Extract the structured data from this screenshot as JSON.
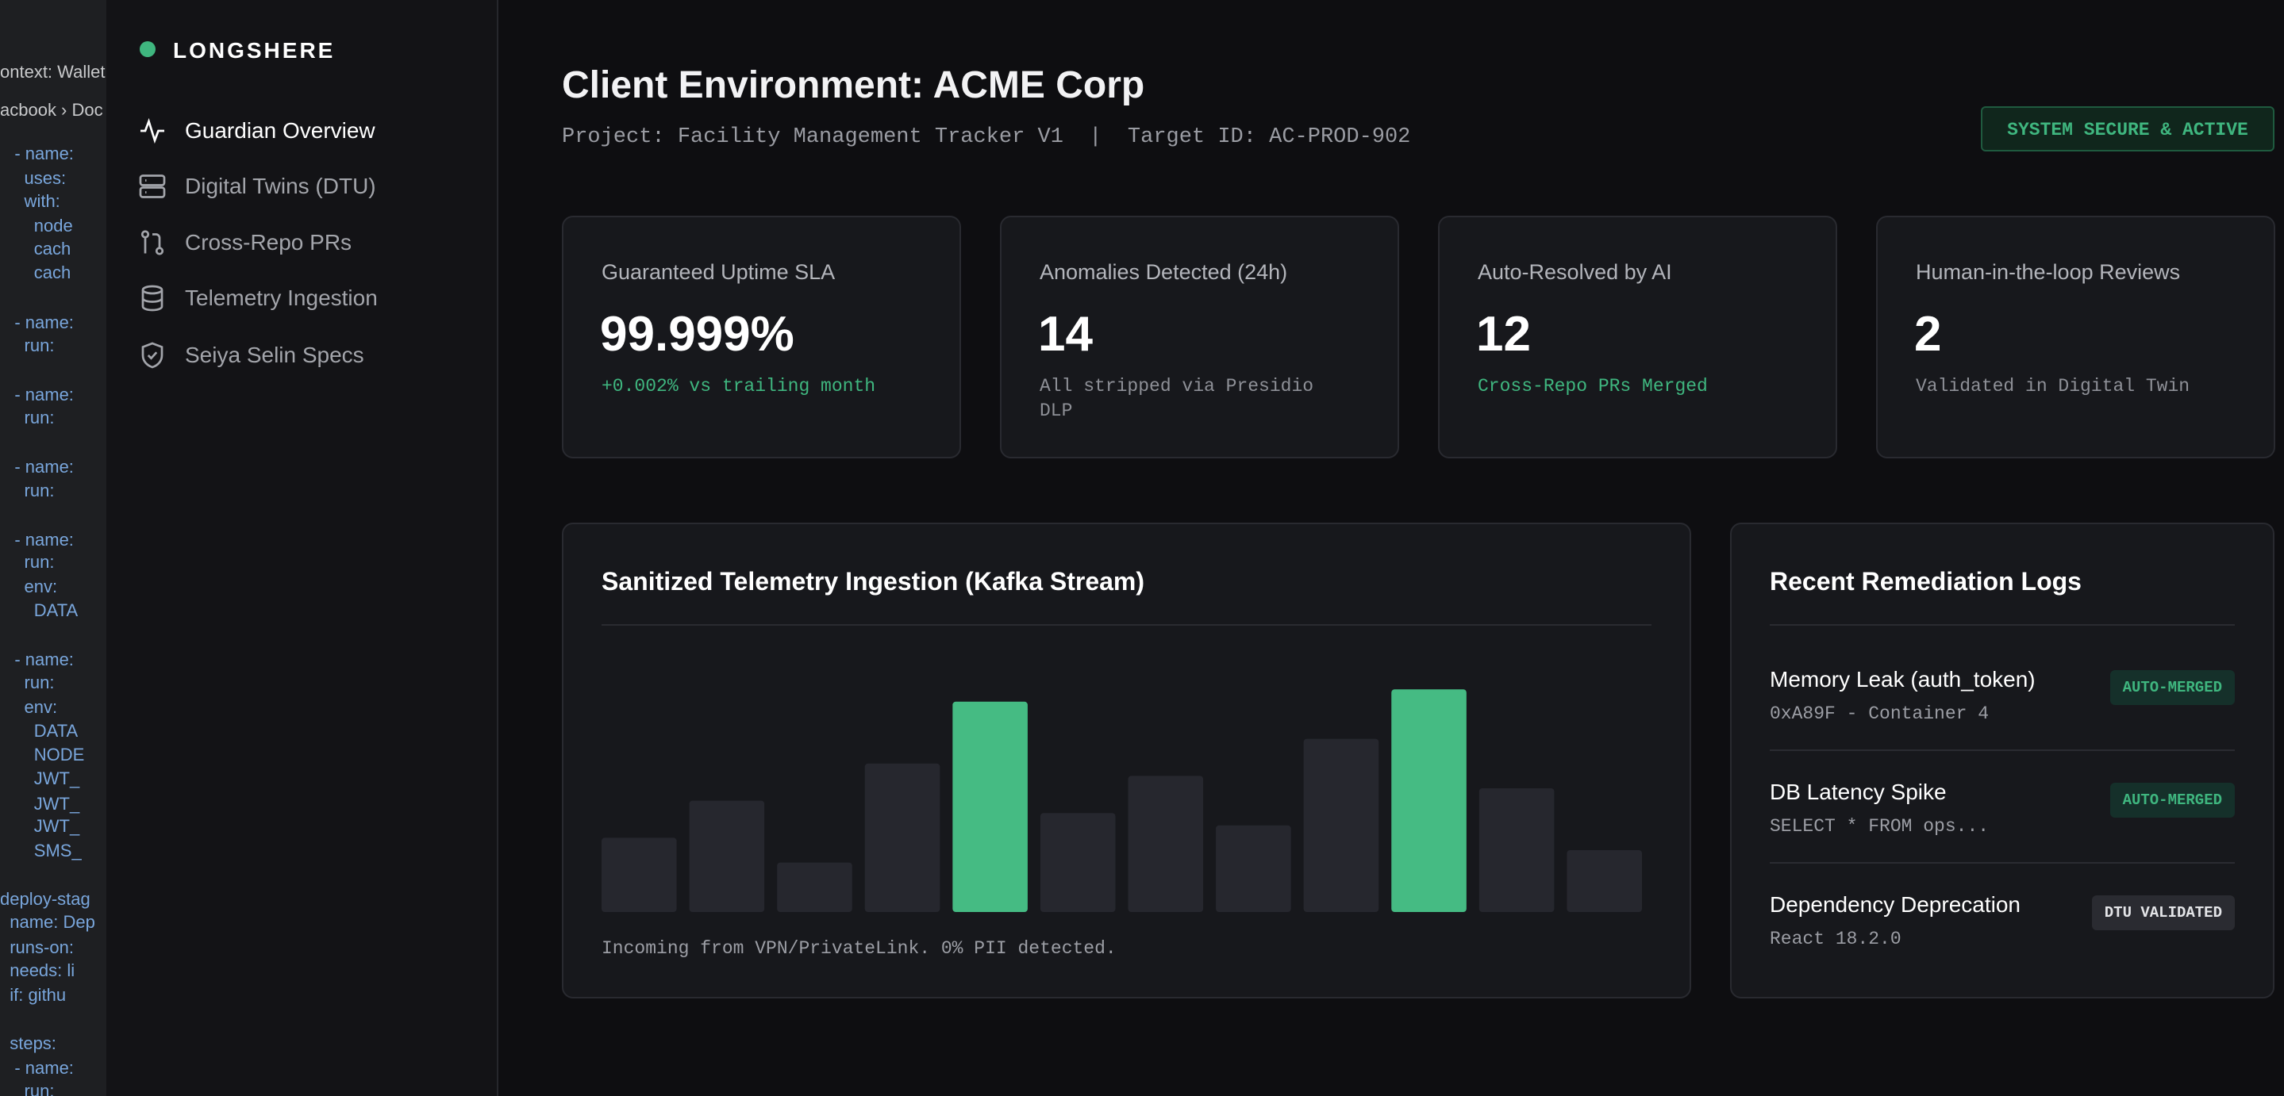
{
  "editor": {
    "lines": [
      "ontext: Wallet",
      "acbook › Doc",
      "   - name:",
      "     uses:",
      "     with:",
      "       node",
      "       cach",
      "       cach",
      "   - name:",
      "     run:",
      "   - name:",
      "     run:",
      "   - name:",
      "     run:",
      "   - name:",
      "     run:",
      "     env:",
      "       DATA",
      "   - name:",
      "     run:",
      "     env:",
      "       DATA",
      "       NODE",
      "       JWT_",
      "       JWT_",
      "       JWT_",
      "       SMS_",
      "deploy-stag",
      "  name: Dep",
      "  runs-on:",
      "  needs: li",
      "  if: githu",
      "  steps:",
      "   - name:",
      "     run:"
    ]
  },
  "sidebar": {
    "brand": "LONGSHERE",
    "nav": [
      {
        "label": "Guardian Overview",
        "active": true
      },
      {
        "label": "Digital Twins (DTU)",
        "active": false
      },
      {
        "label": "Cross-Repo PRs",
        "active": false
      },
      {
        "label": "Telemetry Ingestion",
        "active": false
      },
      {
        "label": "Seiya Selin Specs",
        "active": false
      }
    ]
  },
  "header": {
    "title": "Client Environment: ACME Corp",
    "subtitle": "Project: Facility Management Tracker V1  |  Target ID: AC-PROD-902",
    "status": "SYSTEM SECURE & ACTIVE"
  },
  "kpis": [
    {
      "label": "Guaranteed Uptime SLA",
      "value": "99.999%",
      "note": "+0.002% vs trailing month",
      "note_color": "#3fb67f"
    },
    {
      "label": "Anomalies Detected (24h)",
      "value": "14",
      "note": "All stripped via Presidio DLP",
      "note_color": "#8e9097"
    },
    {
      "label": "Auto-Resolved by AI",
      "value": "12",
      "note": "Cross-Repo PRs Merged",
      "note_color": "#3fb67f"
    },
    {
      "label": "Human-in-the-loop Reviews",
      "value": "2",
      "note": "Validated in Digital Twin",
      "note_color": "#8e9097"
    }
  ],
  "telemetry": {
    "type": "bar",
    "title": "Sanitized Telemetry Ingestion (Kafka Stream)",
    "values": [
      30,
      45,
      20,
      60,
      85,
      40,
      55,
      35,
      70,
      90,
      50,
      25
    ],
    "colors": [
      "#26272e",
      "#26272e",
      "#26272e",
      "#26272e",
      "#45bb83",
      "#26272e",
      "#26272e",
      "#26272e",
      "#26272e",
      "#45bb83",
      "#26272e",
      "#26272e"
    ],
    "ylim": [
      0,
      100
    ],
    "caption": "Incoming from VPN/PrivateLink. 0% PII detected."
  },
  "logs": {
    "title": "Recent Remediation Logs",
    "items": [
      {
        "title": "Memory Leak (auth_token)",
        "detail": "0xA89F - Container 4",
        "status": "AUTO-MERGED",
        "color": "#3fb67f"
      },
      {
        "title": "DB Latency Spike",
        "detail": "SELECT * FROM ops...",
        "status": "AUTO-MERGED",
        "color": "#3fb67f"
      },
      {
        "title": "Dependency Deprecation",
        "detail": "React 18.2.0",
        "status": "DTU VALIDATED",
        "color": "#e4e5e8"
      }
    ]
  }
}
